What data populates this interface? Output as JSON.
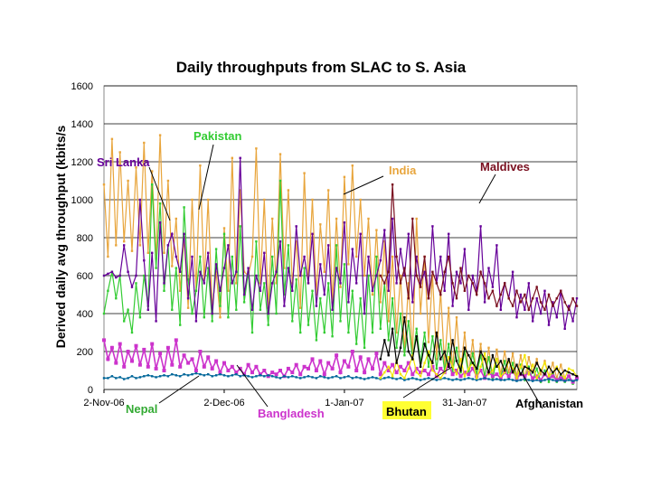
{
  "chart_data": {
    "type": "line",
    "title": "Daily throughputs from SLAC to S. Asia",
    "xlabel": "",
    "ylabel": "Derived daily avg throughput (kbits/s",
    "ylim": [
      0,
      1600
    ],
    "yticks": [
      "0",
      "200",
      "400",
      "600",
      "800",
      "1000",
      "1200",
      "1400",
      "1600"
    ],
    "xlim": [
      "2006-11-02",
      "2007-02-28"
    ],
    "xticks": [
      {
        "date": "2006-11-02",
        "label": "2-Nov-06"
      },
      {
        "date": "2006-12-02",
        "label": "2-Dec-06"
      },
      {
        "date": "2007-01-01",
        "label": "1-Jan-07"
      },
      {
        "date": "2007-01-31",
        "label": "31-Jan-07"
      }
    ],
    "grid": "horizontal",
    "legend": "labels placed on chart with leader arrows",
    "series": [
      {
        "name": "India",
        "color": "#e8a53c",
        "values": [
          1080,
          700,
          1320,
          760,
          1250,
          780,
          1100,
          730,
          1170,
          760,
          1300,
          720,
          1150,
          690,
          1340,
          720,
          1100,
          650,
          900,
          520,
          800,
          430,
          1000,
          520,
          1180,
          560,
          1000,
          430,
          620,
          380,
          850,
          520,
          1220,
          560,
          1050,
          620,
          600,
          700,
          1270,
          560,
          1000,
          430,
          900,
          560,
          1240,
          640,
          1050,
          560,
          780,
          430,
          1140,
          560,
          1000,
          500,
          870,
          620,
          1050,
          460,
          900,
          540,
          1120,
          660,
          1180,
          700,
          1000,
          600,
          900,
          500,
          840,
          460,
          780,
          360,
          700,
          300,
          600,
          200,
          560,
          180,
          900,
          400,
          700,
          250,
          600,
          160,
          520,
          130,
          430,
          110,
          380,
          90,
          300,
          80,
          260,
          70,
          240,
          60,
          220,
          60,
          210,
          80,
          200,
          90,
          190,
          70,
          180,
          60,
          170,
          90,
          160,
          80,
          150,
          70,
          140,
          60,
          130,
          60
        ]
      },
      {
        "name": "Pakistan",
        "color": "#33cc33",
        "values": [
          400,
          520,
          620,
          480,
          600,
          360,
          420,
          300,
          560,
          380,
          600,
          440,
          1080,
          640,
          980,
          520,
          760,
          420,
          640,
          340,
          960,
          580,
          400,
          520,
          700,
          380,
          640,
          360,
          740,
          440,
          820,
          380,
          700,
          420,
          860,
          460,
          620,
          300,
          780,
          420,
          560,
          340,
          700,
          400,
          1100,
          500,
          760,
          360,
          580,
          300,
          640,
          340,
          520,
          260,
          480,
          300,
          560,
          280,
          760,
          360,
          660,
          300,
          520,
          240,
          480,
          220,
          600,
          300,
          700,
          320,
          560,
          260,
          480,
          220,
          400,
          180,
          360,
          160,
          320,
          140,
          300,
          120,
          280,
          110,
          260,
          100,
          240,
          90,
          220,
          90,
          200,
          80,
          190,
          80,
          180,
          70,
          170,
          60,
          160,
          60,
          150,
          60,
          140,
          50,
          130,
          50,
          120,
          50,
          110,
          40,
          100,
          40,
          90,
          40,
          80,
          40,
          70,
          30,
          60,
          30
        ]
      },
      {
        "name": "Sri Lanka",
        "color": "#660099",
        "values": [
          600,
          610,
          620,
          590,
          600,
          760,
          620,
          540,
          600,
          1000,
          680,
          420,
          720,
          360,
          880,
          560,
          760,
          820,
          700,
          620,
          820,
          480,
          700,
          360,
          620,
          560,
          720,
          400,
          660,
          520,
          640,
          760,
          560,
          620,
          1220,
          500,
          640,
          420,
          600,
          520,
          720,
          400,
          560,
          620,
          780,
          440,
          640,
          520,
          860,
          600,
          700,
          560,
          820,
          440,
          660,
          500,
          760,
          420,
          640,
          560,
          880,
          460,
          740,
          560,
          820,
          400,
          700,
          520,
          600,
          680,
          840,
          520,
          900,
          560,
          740,
          600,
          820,
          460,
          700,
          560,
          620,
          480,
          860,
          560,
          700,
          520,
          820,
          440,
          620,
          560,
          740,
          420,
          600,
          520,
          860,
          460,
          640,
          540,
          760,
          420,
          560,
          480,
          620,
          380,
          500,
          420,
          560,
          360,
          480,
          400,
          520,
          340,
          460,
          380,
          520,
          320,
          440,
          360,
          480,
          300
        ]
      },
      {
        "name": "Bangladesh",
        "color": "#cc33cc",
        "values": [
          260,
          160,
          220,
          140,
          240,
          120,
          200,
          150,
          230,
          130,
          210,
          120,
          240,
          110,
          190,
          100,
          220,
          130,
          260,
          120,
          180,
          140,
          160,
          100,
          200,
          120,
          170,
          110,
          150,
          90,
          140,
          100,
          120,
          90,
          110,
          80,
          130,
          90,
          120,
          80,
          100,
          70,
          90,
          80,
          100,
          70,
          110,
          90,
          130,
          80,
          120,
          110,
          160,
          100,
          150,
          80,
          140,
          110,
          180,
          90,
          150,
          120,
          200,
          100,
          170,
          90,
          160,
          110,
          190,
          80,
          140,
          100,
          130,
          90,
          120,
          100,
          140,
          80,
          110,
          90,
          100,
          80,
          120,
          70,
          110,
          90,
          130,
          80,
          100,
          70,
          90,
          80,
          110,
          70,
          100,
          60,
          90,
          70,
          80,
          60,
          90,
          70,
          100,
          60,
          80,
          70,
          90,
          60,
          70,
          50,
          80,
          60,
          70,
          50,
          60,
          50,
          70,
          40,
          60,
          40
        ]
      },
      {
        "name": "Nepal",
        "color": "#006699",
        "values": [
          60,
          60,
          70,
          60,
          65,
          55,
          60,
          70,
          60,
          65,
          70,
          75,
          70,
          65,
          70,
          75,
          70,
          80,
          75,
          70,
          80,
          75,
          80,
          85,
          80,
          75,
          80,
          70,
          75,
          80,
          75,
          70,
          75,
          80,
          70,
          75,
          70,
          65,
          70,
          75,
          70,
          75,
          70,
          65,
          60,
          70,
          65,
          70,
          65,
          60,
          65,
          70,
          65,
          60,
          70,
          65,
          60,
          65,
          70,
          60,
          65,
          70,
          60,
          65,
          60,
          55,
          60,
          65,
          60,
          55,
          60,
          65,
          60,
          55,
          60,
          50,
          55,
          60,
          55,
          50,
          55,
          60,
          55,
          50,
          55,
          60,
          55,
          50,
          55,
          50,
          55,
          60,
          55,
          50,
          55,
          60,
          55,
          50,
          55,
          50,
          50,
          55,
          50,
          45,
          50,
          55,
          50,
          45,
          50,
          45,
          50,
          55,
          50,
          45,
          50,
          45,
          50,
          45,
          50,
          45
        ]
      },
      {
        "name": "Bhutan",
        "color": "#f2e600",
        "values": [
          60,
          90,
          120,
          70,
          150,
          80,
          60,
          110,
          180,
          90,
          70,
          140,
          200,
          100,
          80,
          60,
          90,
          170,
          120,
          80,
          160,
          70,
          110,
          140,
          60,
          120,
          190,
          80,
          100,
          160,
          70,
          90,
          150,
          110,
          60,
          120,
          180,
          80,
          130,
          60,
          100,
          140,
          70,
          90,
          120,
          80,
          60,
          110,
          100,
          70
        ]
      },
      {
        "name": "Maldives",
        "color": "#7a0f1f",
        "values": [
          600,
          560,
          620,
          1080,
          700,
          560,
          640,
          480,
          900,
          600,
          540,
          700,
          480,
          620,
          560,
          500,
          620,
          700,
          560,
          480,
          640,
          520,
          600,
          560,
          500,
          620,
          560,
          480,
          520,
          440,
          500,
          560,
          480,
          440,
          520,
          460,
          500,
          420,
          480,
          540,
          460,
          420,
          500,
          440,
          480,
          520,
          460,
          420,
          480,
          440
        ]
      },
      {
        "name": "Afghanistan",
        "color": "#000000",
        "values": [
          160,
          260,
          180,
          320,
          140,
          220,
          380,
          200,
          160,
          280,
          120,
          240,
          180,
          140,
          300,
          160,
          200,
          120,
          260,
          150,
          100,
          220,
          180,
          140,
          110,
          200,
          160,
          90,
          180,
          120,
          150,
          100,
          160,
          90,
          130,
          80,
          120,
          110,
          90,
          140,
          100,
          80,
          120,
          90,
          110,
          80,
          100,
          90,
          80,
          70
        ]
      }
    ]
  },
  "annotations": [
    {
      "text": "Pakistan",
      "color": "#33cc33"
    },
    {
      "text": "Sri Lanka",
      "color": "#660099"
    },
    {
      "text": "India",
      "color": "#e8a53c"
    },
    {
      "text": "Maldives",
      "color": "#7a0f1f"
    },
    {
      "text": "Nepal",
      "color": "#33aa33"
    },
    {
      "text": "Bangladesh",
      "color": "#cc33cc"
    },
    {
      "text": "Bhutan",
      "color": "#000000",
      "highlight": "#ffff33"
    },
    {
      "text": "Afghanistan",
      "color": "#000000"
    }
  ]
}
